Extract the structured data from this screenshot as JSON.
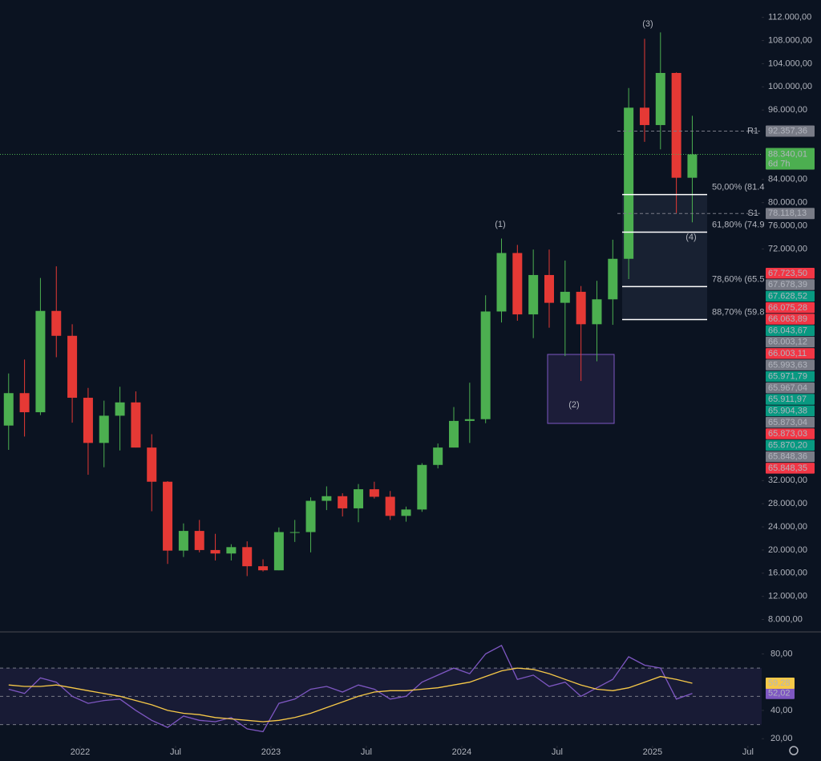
{
  "chart_data": {
    "type": "candlestick",
    "x": [
      "2021-08",
      "2021-09",
      "2021-10",
      "2021-11",
      "2021-12",
      "2022-01",
      "2022-02",
      "2022-03",
      "2022-04",
      "2022-05",
      "2022-06",
      "2022-07",
      "2022-08",
      "2022-09",
      "2022-10",
      "2022-11",
      "2022-12",
      "2023-01",
      "2023-02",
      "2023-03",
      "2023-04",
      "2023-05",
      "2023-06",
      "2023-07",
      "2023-08",
      "2023-09",
      "2023-10",
      "2023-11",
      "2023-12",
      "2024-01",
      "2024-02",
      "2024-03",
      "2024-04",
      "2024-05",
      "2024-06",
      "2024-07",
      "2024-08",
      "2024-09",
      "2024-10",
      "2024-11",
      "2024-12",
      "2025-01",
      "2025-02",
      "2025-03"
    ],
    "open": [
      41500,
      47100,
      43800,
      61300,
      57000,
      46300,
      38500,
      43200,
      45500,
      37700,
      31800,
      19900,
      23300,
      20000,
      19400,
      20500,
      17200,
      16500,
      23100,
      23100,
      28500,
      29300,
      27200,
      30500,
      29200,
      25900,
      27000,
      34700,
      37700,
      42300,
      42600,
      61200,
      71300,
      60700,
      67500,
      62700,
      64600,
      59000,
      63300,
      70300,
      96400,
      93400,
      102400,
      84300
    ],
    "high": [
      50500,
      52900,
      67000,
      69000,
      59000,
      48000,
      45800,
      48200,
      47400,
      40000,
      31900,
      24600,
      25200,
      22800,
      21000,
      21500,
      18400,
      23900,
      25200,
      29100,
      31000,
      29800,
      31400,
      31800,
      30200,
      27500,
      35000,
      38400,
      44700,
      48900,
      64000,
      73800,
      72700,
      71900,
      71900,
      70000,
      65600,
      66500,
      73600,
      99800,
      108300,
      109400,
      102500,
      95000
    ],
    "low": [
      37300,
      39600,
      43300,
      53300,
      42000,
      33000,
      34300,
      37200,
      37700,
      26700,
      17600,
      18800,
      19600,
      18200,
      18200,
      15500,
      16300,
      16500,
      21400,
      19600,
      26900,
      25800,
      24800,
      28900,
      25200,
      24900,
      26600,
      34100,
      37700,
      38500,
      41900,
      59300,
      59600,
      56600,
      58400,
      53500,
      49200,
      52600,
      58900,
      66800,
      90500,
      89200,
      78200,
      76600
    ],
    "close": [
      47100,
      43800,
      61300,
      57000,
      46300,
      38500,
      43200,
      45500,
      37700,
      31800,
      19900,
      23300,
      20000,
      19400,
      20500,
      17200,
      16500,
      23100,
      23100,
      28500,
      29300,
      27200,
      30500,
      29200,
      25900,
      27000,
      34700,
      37700,
      42300,
      42600,
      61200,
      71300,
      60700,
      67500,
      62700,
      64600,
      59000,
      63300,
      70300,
      96400,
      93400,
      102400,
      84300,
      88340.01
    ],
    "up_color": "#4caf50",
    "down_color": "#e53935",
    "ylim": [
      6000,
      115000
    ],
    "yticks": [
      {
        "value": 8000,
        "label": "8.000,00"
      },
      {
        "value": 12000,
        "label": "12.000,00"
      },
      {
        "value": 16000,
        "label": "16.000,00"
      },
      {
        "value": 20000,
        "label": "20.000,00"
      },
      {
        "value": 24000,
        "label": "24.000,00"
      },
      {
        "value": 28000,
        "label": "28.000,00"
      },
      {
        "value": 32000,
        "label": "32.000,00"
      },
      {
        "value": 72000,
        "label": "72.000,00"
      },
      {
        "value": 76000,
        "label": "76.000,00"
      },
      {
        "value": 80000,
        "label": "80.000,00"
      },
      {
        "value": 84000,
        "label": "84.000,00"
      },
      {
        "value": 96000,
        "label": "96.000,00"
      },
      {
        "value": 100000,
        "label": "100.000,00"
      },
      {
        "value": 104000,
        "label": "104.000,00"
      },
      {
        "value": 108000,
        "label": "108.000,00"
      },
      {
        "value": 112000,
        "label": "112.000,00"
      }
    ],
    "xticks": [
      {
        "value": "2022-01",
        "label": "2022"
      },
      {
        "value": "2022-07",
        "label": "Jul"
      },
      {
        "value": "2023-01",
        "label": "2023"
      },
      {
        "value": "2023-07",
        "label": "Jul"
      },
      {
        "value": "2024-01",
        "label": "2024"
      },
      {
        "value": "2024-07",
        "label": "Jul"
      },
      {
        "value": "2025-01",
        "label": "2025"
      },
      {
        "value": "2025-07",
        "label": "Jul"
      }
    ],
    "current_price": {
      "value": 88340.01,
      "label": "88.340,01",
      "countdown": "6d 7h",
      "color": "#4caf50"
    },
    "pivots": [
      {
        "name": "R1",
        "value": 92357.36,
        "label": "92.357,36"
      },
      {
        "name": "S1",
        "value": 78118.13,
        "label": "78.118,13"
      }
    ],
    "fib_levels": [
      {
        "value": 81400,
        "label": "50,00% (81.4"
      },
      {
        "value": 74900,
        "label": "61,80% (74.9"
      },
      {
        "value": 65500,
        "label": "78,60% (65.5"
      },
      {
        "value": 59800,
        "label": "88,70% (59.8"
      }
    ],
    "waves": [
      "(1)",
      "(2)",
      "(3)",
      "(4)"
    ],
    "side_labels": [
      {
        "label": "67.723,50",
        "color": "#f23645"
      },
      {
        "label": "67.678,39",
        "color": "#787b86"
      },
      {
        "label": "67.628,52",
        "color": "#089981"
      },
      {
        "label": "66.075,28",
        "color": "#f23645"
      },
      {
        "label": "66.063,89",
        "color": "#f23645"
      },
      {
        "label": "66.043,67",
        "color": "#089981"
      },
      {
        "label": "66.003,12",
        "color": "#787b86"
      },
      {
        "label": "66.003,11",
        "color": "#f23645"
      },
      {
        "label": "65.993,63",
        "color": "#787b86"
      },
      {
        "label": "65.971,79",
        "color": "#089981"
      },
      {
        "label": "65.967,04",
        "color": "#787b86"
      },
      {
        "label": "65.911,97",
        "color": "#089981"
      },
      {
        "label": "65.904,38",
        "color": "#089981"
      },
      {
        "label": "65.873,04",
        "color": "#787b86"
      },
      {
        "label": "65.873,03",
        "color": "#f23645"
      },
      {
        "label": "65.870,20",
        "color": "#089981"
      },
      {
        "label": "65.848,36",
        "color": "#787b86"
      },
      {
        "label": "65.848,35",
        "color": "#f23645"
      }
    ],
    "rsi": {
      "type": "line",
      "ylim": [
        15,
        95
      ],
      "yticks": [
        {
          "value": 80,
          "label": "80,00"
        },
        {
          "value": 40,
          "label": "40,00"
        },
        {
          "value": 20,
          "label": "20,00"
        }
      ],
      "bands": [
        30,
        50,
        70
      ],
      "series": [
        {
          "color": "#7e57c2",
          "last_label": "52,02",
          "values": [
            55,
            52,
            63,
            60,
            50,
            45,
            47,
            48,
            40,
            33,
            28,
            36,
            33,
            32,
            35,
            27,
            25,
            45,
            48,
            55,
            57,
            53,
            58,
            55,
            48,
            50,
            60,
            65,
            70,
            66,
            80,
            86,
            62,
            65,
            57,
            60,
            50,
            56,
            62,
            78,
            72,
            70,
            48,
            52.02
          ]
        },
        {
          "color": "#f7c948",
          "last_label": "59,28",
          "values": [
            58,
            57,
            57,
            58,
            56,
            54,
            52,
            50,
            47,
            44,
            40,
            38,
            37,
            35,
            34,
            33,
            32,
            33,
            35,
            38,
            42,
            46,
            50,
            53,
            54,
            54,
            55,
            56,
            58,
            60,
            64,
            68,
            70,
            69,
            66,
            62,
            58,
            55,
            54,
            56,
            60,
            64,
            62,
            59.28
          ]
        }
      ]
    }
  }
}
